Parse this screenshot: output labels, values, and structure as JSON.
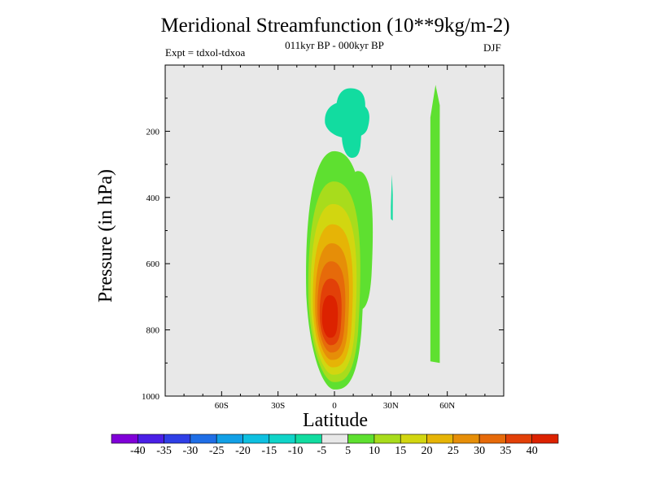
{
  "chart_data": {
    "type": "heatmap",
    "title": "Meridional Streamfunction (10**9kg/m-2)",
    "subtitle": "011kyr BP - 000kyr BP",
    "expt": "Expt = tdxol-tdxoa",
    "season": "DJF",
    "xlabel": "Latitude",
    "ylabel": "Pressure (in hPa)",
    "x_ticks": [
      {
        "value": -60,
        "label": "60S"
      },
      {
        "value": -30,
        "label": "30S"
      },
      {
        "value": 0,
        "label": "0"
      },
      {
        "value": 30,
        "label": "30N"
      },
      {
        "value": 60,
        "label": "60N"
      }
    ],
    "y_ticks": [
      {
        "value": 200,
        "label": "200"
      },
      {
        "value": 400,
        "label": "400"
      },
      {
        "value": 600,
        "label": "600"
      },
      {
        "value": 800,
        "label": "800"
      },
      {
        "value": 1000,
        "label": "1000"
      }
    ],
    "xlim": [
      -90,
      90
    ],
    "ylim": [
      1000,
      0
    ],
    "background_color": "#e8e8e8",
    "colorbar": {
      "labels": [
        "-40",
        "-35",
        "-30",
        "-25",
        "-20",
        "-15",
        "-10",
        "-5",
        "5",
        "10",
        "15",
        "20",
        "25",
        "30",
        "35",
        "40"
      ],
      "colors": [
        "#8000d8",
        "#4a1fe6",
        "#2f3fe6",
        "#1f6ee6",
        "#12a0e6",
        "#0ec0e0",
        "#10d4c8",
        "#12dca0",
        "#e8e8e8",
        "#5ee030",
        "#a8dc1c",
        "#d2d610",
        "#e6b406",
        "#e68e08",
        "#e66a0a",
        "#e24008",
        "#dc2200"
      ]
    },
    "features": [
      {
        "name": "positive-cell",
        "value_range": [
          5,
          40
        ],
        "lat_range": [
          -15,
          15
        ],
        "p_range": [
          260,
          980
        ],
        "peak": {
          "lat": -3,
          "p": 770,
          "value": 40
        }
      },
      {
        "name": "positive-branch-north",
        "value_range": [
          5,
          10
        ],
        "lat_range": [
          5,
          20
        ],
        "p_range": [
          320,
          740
        ]
      },
      {
        "name": "negative-cell",
        "value_range": [
          -10,
          -5
        ],
        "lat_range": [
          -5,
          18
        ],
        "p_range": [
          70,
          280
        ],
        "peak": {
          "lat": 10,
          "p": 180,
          "value": -10
        }
      },
      {
        "name": "positive-strip-60n",
        "value_range": [
          5,
          10
        ],
        "lat_range": [
          51,
          56
        ],
        "p_range": [
          60,
          900
        ]
      },
      {
        "name": "negative-strip-30n",
        "value_range": [
          -10,
          -5
        ],
        "lat_range": [
          30,
          31
        ],
        "p_range": [
          330,
          470
        ]
      }
    ]
  }
}
